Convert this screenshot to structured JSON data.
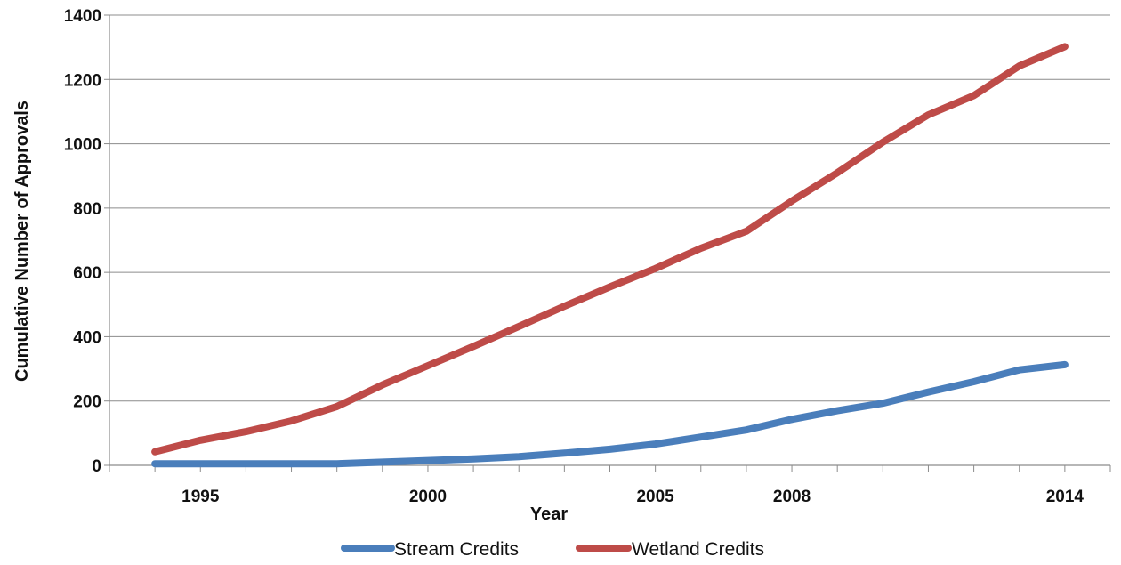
{
  "chart_data": {
    "type": "line",
    "title": "",
    "xlabel": "Year",
    "ylabel": "Cumulative Number of Approvals",
    "xlim": [
      1993,
      2015
    ],
    "ylim": [
      0,
      1400
    ],
    "yticks": [
      "0",
      "200",
      "400",
      "600",
      "800",
      "1000",
      "1200",
      "1400"
    ],
    "xtick_labels": [
      {
        "year": 1995,
        "label": "1995"
      },
      {
        "year": 2000,
        "label": "2000"
      },
      {
        "year": 2005,
        "label": "2005"
      },
      {
        "year": 2008,
        "label": "2008"
      },
      {
        "year": 2014,
        "label": "2014"
      }
    ],
    "grid": "horizontal",
    "legend_position": "bottom",
    "x": [
      1994,
      1995,
      1996,
      1997,
      1998,
      1999,
      2000,
      2001,
      2002,
      2003,
      2004,
      2005,
      2006,
      2007,
      2008,
      2009,
      2010,
      2011,
      2012,
      2013,
      2014
    ],
    "series": [
      {
        "name": "Stream Credits",
        "color": "#4a7ebb",
        "values": [
          5,
          5,
          5,
          5,
          5,
          10,
          15,
          20,
          27,
          38,
          50,
          66,
          88,
          110,
          143,
          170,
          193,
          228,
          260,
          297,
          313
        ]
      },
      {
        "name": "Wetland Credits",
        "color": "#be4b48",
        "values": [
          42,
          78,
          105,
          138,
          183,
          250,
          310,
          370,
          432,
          495,
          555,
          612,
          675,
          728,
          822,
          910,
          1005,
          1090,
          1150,
          1242,
          1302
        ]
      }
    ]
  }
}
